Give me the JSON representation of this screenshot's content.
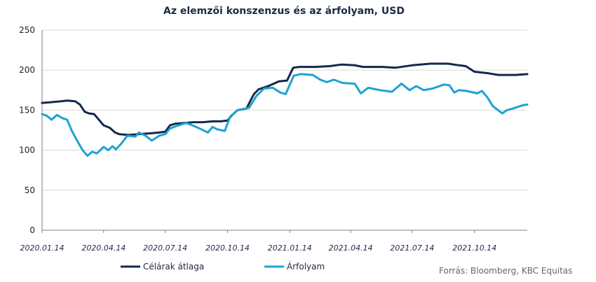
{
  "chart_data": {
    "type": "line",
    "title": "Az elemzői konszenzus és az árfolyam, USD",
    "xlabel": "",
    "ylabel": "",
    "ylim": [
      0,
      250
    ],
    "yticks": [
      0,
      50,
      100,
      150,
      200,
      250
    ],
    "xticks": [
      "2020.01.14",
      "2020.04.14",
      "2020.07.14",
      "2020.10.14",
      "2021.01.14",
      "2021.04.14",
      "2021.07.14",
      "2021.10.14"
    ],
    "x_range": [
      "2020.01.14",
      "2021.12.31"
    ],
    "grid": "horizontal",
    "legend": "bottom-left",
    "series": [
      {
        "name": "Célárak átlaga",
        "color": "#13294b",
        "points": [
          [
            "2020.01.14",
            159
          ],
          [
            "2020.01.28",
            160
          ],
          [
            "2020.02.11",
            161
          ],
          [
            "2020.02.20",
            162
          ],
          [
            "2020.03.03",
            161
          ],
          [
            "2020.03.10",
            157
          ],
          [
            "2020.03.17",
            148
          ],
          [
            "2020.03.23",
            146
          ],
          [
            "2020.03.31",
            145
          ],
          [
            "2020.04.07",
            138
          ],
          [
            "2020.04.14",
            131
          ],
          [
            "2020.04.23",
            128
          ],
          [
            "2020.05.01",
            122
          ],
          [
            "2020.05.07",
            120
          ],
          [
            "2020.05.21",
            119
          ],
          [
            "2020.06.04",
            120
          ],
          [
            "2020.06.21",
            121
          ],
          [
            "2020.07.05",
            122
          ],
          [
            "2020.07.14",
            123
          ],
          [
            "2020.07.21",
            131
          ],
          [
            "2020.07.29",
            133
          ],
          [
            "2020.08.11",
            134
          ],
          [
            "2020.08.25",
            135
          ],
          [
            "2020.09.08",
            135
          ],
          [
            "2020.09.22",
            136
          ],
          [
            "2020.10.04",
            136
          ],
          [
            "2020.10.14",
            137
          ],
          [
            "2020.10.21",
            144
          ],
          [
            "2020.10.29",
            150
          ],
          [
            "2020.11.11",
            152
          ],
          [
            "2020.11.22",
            170
          ],
          [
            "2020.11.29",
            176
          ],
          [
            "2020.12.13",
            180
          ],
          [
            "2020.12.29",
            186
          ],
          [
            "2021.01.10",
            187
          ],
          [
            "2021.01.19",
            203
          ],
          [
            "2021.01.28",
            204
          ],
          [
            "2021.02.21",
            204
          ],
          [
            "2021.03.14",
            205
          ],
          [
            "2021.04.01",
            207
          ],
          [
            "2021.04.20",
            206
          ],
          [
            "2021.05.02",
            204
          ],
          [
            "2021.05.31",
            204
          ],
          [
            "2021.06.19",
            203
          ],
          [
            "2021.07.14",
            206
          ],
          [
            "2021.08.10",
            208
          ],
          [
            "2021.09.05",
            208
          ],
          [
            "2021.09.21",
            206
          ],
          [
            "2021.10.01",
            205
          ],
          [
            "2021.10.14",
            198
          ],
          [
            "2021.11.04",
            196
          ],
          [
            "2021.11.18",
            194
          ],
          [
            "2021.12.14",
            194
          ],
          [
            "2021.12.31",
            195
          ]
        ]
      },
      {
        "name": "Árfolyam",
        "color": "#1ea2d4",
        "points": [
          [
            "2020.01.14",
            145
          ],
          [
            "2020.01.21",
            143
          ],
          [
            "2020.01.28",
            138
          ],
          [
            "2020.02.05",
            144
          ],
          [
            "2020.02.13",
            140
          ],
          [
            "2020.02.20",
            138
          ],
          [
            "2020.02.27",
            124
          ],
          [
            "2020.03.07",
            110
          ],
          [
            "2020.03.14",
            100
          ],
          [
            "2020.03.21",
            93
          ],
          [
            "2020.03.28",
            98
          ],
          [
            "2020.04.04",
            96
          ],
          [
            "2020.04.14",
            104
          ],
          [
            "2020.04.21",
            100
          ],
          [
            "2020.04.27",
            105
          ],
          [
            "2020.05.02",
            101
          ],
          [
            "2020.05.10",
            108
          ],
          [
            "2020.05.19",
            118
          ],
          [
            "2020.05.31",
            117
          ],
          [
            "2020.06.05",
            122
          ],
          [
            "2020.06.15",
            118
          ],
          [
            "2020.06.24",
            112
          ],
          [
            "2020.07.05",
            118
          ],
          [
            "2020.07.14",
            120
          ],
          [
            "2020.07.21",
            127
          ],
          [
            "2020.07.30",
            130
          ],
          [
            "2020.08.14",
            134
          ],
          [
            "2020.08.23",
            131
          ],
          [
            "2020.09.03",
            127
          ],
          [
            "2020.09.15",
            122
          ],
          [
            "2020.09.22",
            129
          ],
          [
            "2020.09.29",
            126
          ],
          [
            "2020.10.10",
            124
          ],
          [
            "2020.10.18",
            142
          ],
          [
            "2020.10.29",
            150
          ],
          [
            "2020.11.15",
            153
          ],
          [
            "2020.11.26",
            168
          ],
          [
            "2020.12.07",
            177
          ],
          [
            "2020.12.20",
            178
          ],
          [
            "2020.12.31",
            172
          ],
          [
            "2021.01.08",
            170
          ],
          [
            "2021.01.20",
            193
          ],
          [
            "2021.01.30",
            195
          ],
          [
            "2021.02.17",
            194
          ],
          [
            "2021.02.28",
            188
          ],
          [
            "2021.03.10",
            185
          ],
          [
            "2021.03.20",
            188
          ],
          [
            "2021.04.02",
            184
          ],
          [
            "2021.04.20",
            183
          ],
          [
            "2021.04.29",
            171
          ],
          [
            "2021.05.10",
            178
          ],
          [
            "2021.05.27",
            175
          ],
          [
            "2021.06.14",
            173
          ],
          [
            "2021.06.28",
            183
          ],
          [
            "2021.07.10",
            175
          ],
          [
            "2021.07.20",
            180
          ],
          [
            "2021.07.31",
            175
          ],
          [
            "2021.08.13",
            177
          ],
          [
            "2021.08.30",
            182
          ],
          [
            "2021.09.07",
            181
          ],
          [
            "2021.09.14",
            172
          ],
          [
            "2021.09.21",
            175
          ],
          [
            "2021.10.02",
            174
          ],
          [
            "2021.10.18",
            171
          ],
          [
            "2021.10.25",
            174
          ],
          [
            "2021.11.02",
            166
          ],
          [
            "2021.11.10",
            155
          ],
          [
            "2021.11.24",
            146
          ],
          [
            "2021.12.01",
            150
          ],
          [
            "2021.12.10",
            152
          ],
          [
            "2021.12.24",
            156
          ],
          [
            "2021.12.31",
            157
          ]
        ]
      }
    ],
    "source": "Forrás: Bloomberg, KBC Equitas"
  }
}
